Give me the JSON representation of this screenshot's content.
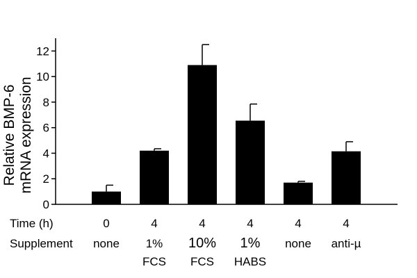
{
  "chart_data": {
    "type": "bar",
    "ylabel_lines": [
      "Relative BMP-6",
      "mRNA expression"
    ],
    "ylim": [
      0,
      13
    ],
    "yticks": [
      0,
      2,
      4,
      6,
      8,
      10,
      12
    ],
    "grid": false,
    "legend": "none",
    "bar_color": "#000000",
    "row_labels": {
      "time": "Time (h)",
      "supplement": "Supplement"
    },
    "categories": [
      {
        "time": "0",
        "supplement": [
          "none"
        ],
        "value": 1.0,
        "error": 0.5
      },
      {
        "time": "4",
        "supplement": [
          "1%",
          "FCS"
        ],
        "value": 4.2,
        "error": 0.15
      },
      {
        "time": "4",
        "supplement": [
          "10%",
          "FCS"
        ],
        "value": 10.9,
        "error": 1.6
      },
      {
        "time": "4",
        "supplement": [
          "1%",
          "HABS"
        ],
        "value": 6.55,
        "error": 1.3
      },
      {
        "time": "4",
        "supplement": [
          "none"
        ],
        "value": 1.7,
        "error": 0.1
      },
      {
        "time": "4",
        "supplement": [
          "anti-µ"
        ],
        "value": 4.15,
        "error": 0.75
      }
    ]
  }
}
